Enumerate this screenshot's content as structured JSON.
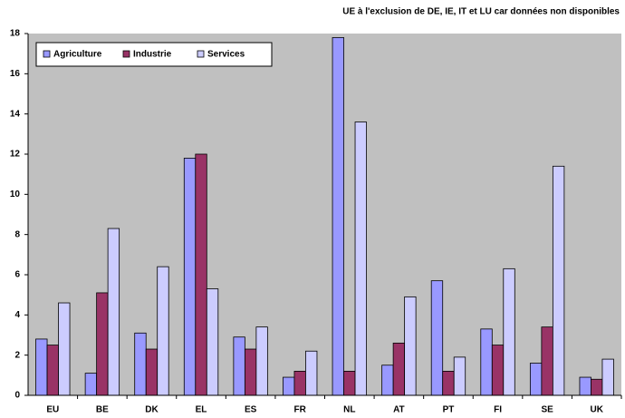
{
  "chart_data": {
    "type": "bar",
    "annotation": "UE à l'exclusion de DE, IE, IT et LU car données non disponibles",
    "categories": [
      "EU",
      "BE",
      "DK",
      "EL",
      "ES",
      "FR",
      "NL",
      "AT",
      "PT",
      "FI",
      "SE",
      "UK"
    ],
    "series": [
      {
        "name": "Agriculture",
        "color": "#9999ff",
        "values": [
          2.8,
          1.1,
          3.1,
          11.8,
          2.9,
          0.9,
          17.8,
          1.5,
          5.7,
          3.3,
          1.6,
          0.9
        ]
      },
      {
        "name": "Industrie",
        "color": "#993366",
        "values": [
          2.5,
          5.1,
          2.3,
          12.0,
          2.3,
          1.2,
          1.2,
          2.6,
          1.2,
          2.5,
          3.4,
          0.8
        ]
      },
      {
        "name": "Services",
        "color": "#ccccff",
        "values": [
          4.6,
          8.3,
          6.4,
          5.3,
          3.4,
          2.2,
          13.6,
          4.9,
          1.9,
          6.3,
          11.4,
          1.8
        ]
      }
    ],
    "ylim": [
      0,
      18
    ],
    "yticks": [
      0,
      2,
      4,
      6,
      8,
      10,
      12,
      14,
      16,
      18
    ],
    "grid": false,
    "legend": "top-left"
  }
}
